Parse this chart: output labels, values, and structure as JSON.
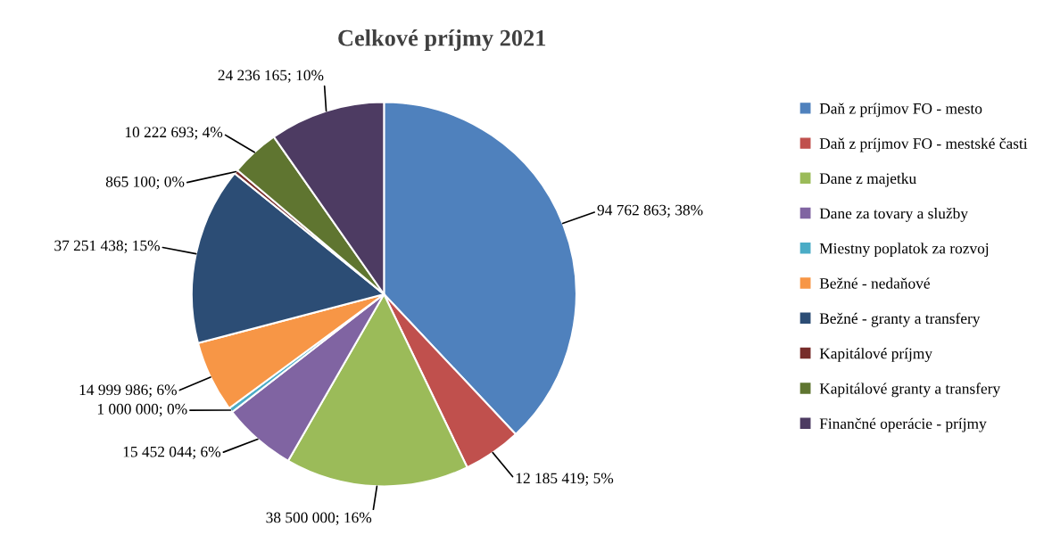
{
  "chart_data": {
    "type": "pie",
    "title": "Celkové príjmy 2021",
    "categories": [
      "Daň z príjmov FO - mesto",
      "Daň z príjmov FO - mestské časti",
      "Dane z majetku",
      "Dane za tovary a služby",
      "Miestny poplatok za rozvoj",
      "Bežné - nedaňové",
      "Bežné - granty a transfery",
      "Kapitálové príjmy",
      "Kapitálové granty a transfery",
      "Finančné operácie - príjmy"
    ],
    "values": [
      94762863,
      12185419,
      38500000,
      15452044,
      1000000,
      14999986,
      37251438,
      865100,
      10222693,
      24236165
    ],
    "value_labels": [
      "94 762 863; 38%",
      "12 185 419; 5%",
      "38 500 000; 16%",
      "15 452 044; 6%",
      "1 000 000; 0%",
      "14 999 986; 6%",
      "37 251 438; 15%",
      "865 100; 0%",
      "10 222 693; 4%",
      "24 236 165; 10%"
    ],
    "colors": [
      "#4f81bd",
      "#c0504d",
      "#9bbb59",
      "#8064a2",
      "#4bacc6",
      "#f79646",
      "#2c4d75",
      "#772c2a",
      "#5f7530",
      "#4d3b62"
    ],
    "legend": "right"
  }
}
